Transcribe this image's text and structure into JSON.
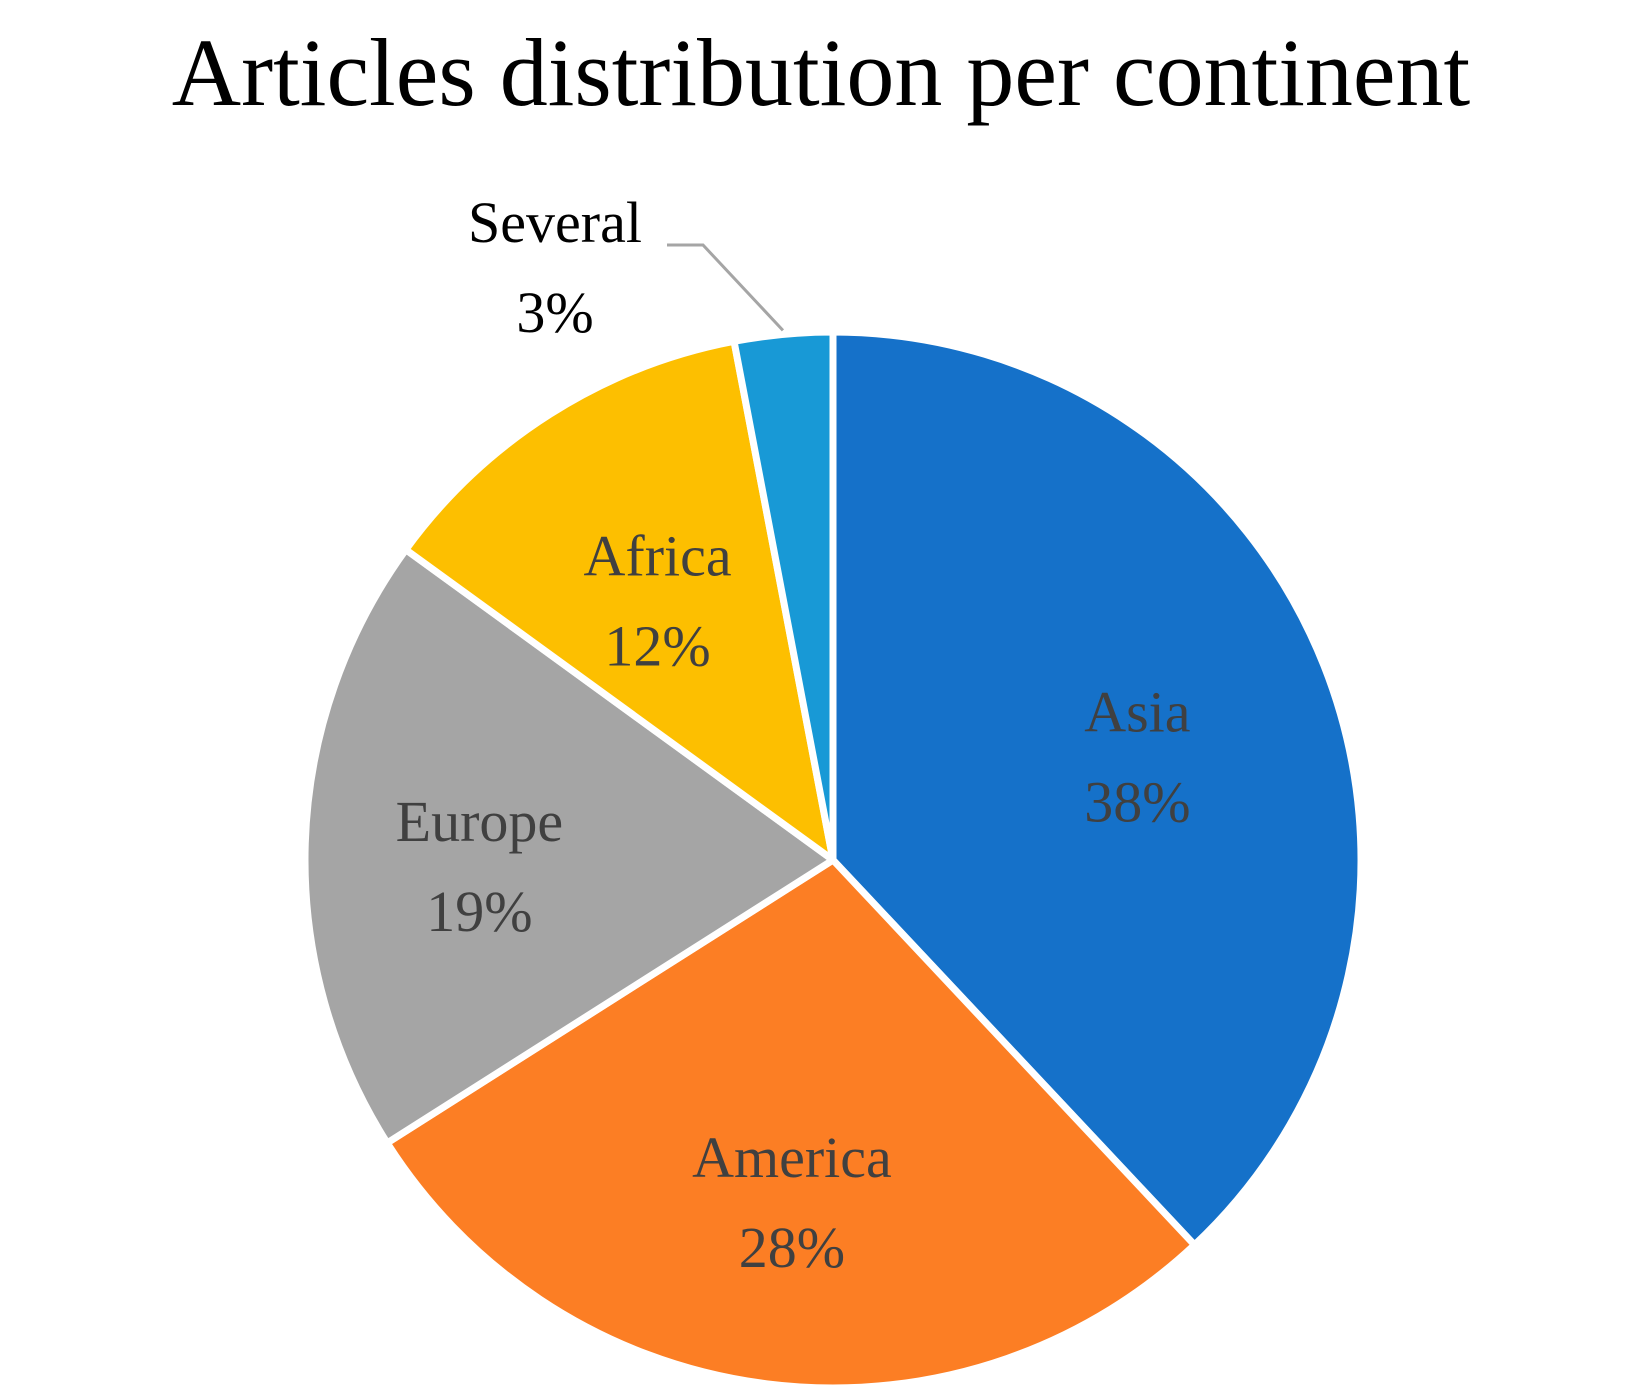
{
  "chart_data": {
    "type": "pie",
    "title": "Articles distribution per continent",
    "categories": [
      "Asia",
      "America",
      "Europe",
      "Africa",
      "Several"
    ],
    "values": [
      38,
      28,
      19,
      12,
      3
    ],
    "value_labels": [
      "38%",
      "28%",
      "19%",
      "12%",
      "3%"
    ],
    "colors": [
      "#1571C9",
      "#FC7E24",
      "#A5A5A5",
      "#FDBF00",
      "#1899D6"
    ],
    "label_color": "#404040",
    "outside_label_color": "#000000",
    "leader_line_color": "#A5A5A5",
    "start_angle_deg": 0,
    "direction": "clockwise",
    "legend": "none"
  }
}
